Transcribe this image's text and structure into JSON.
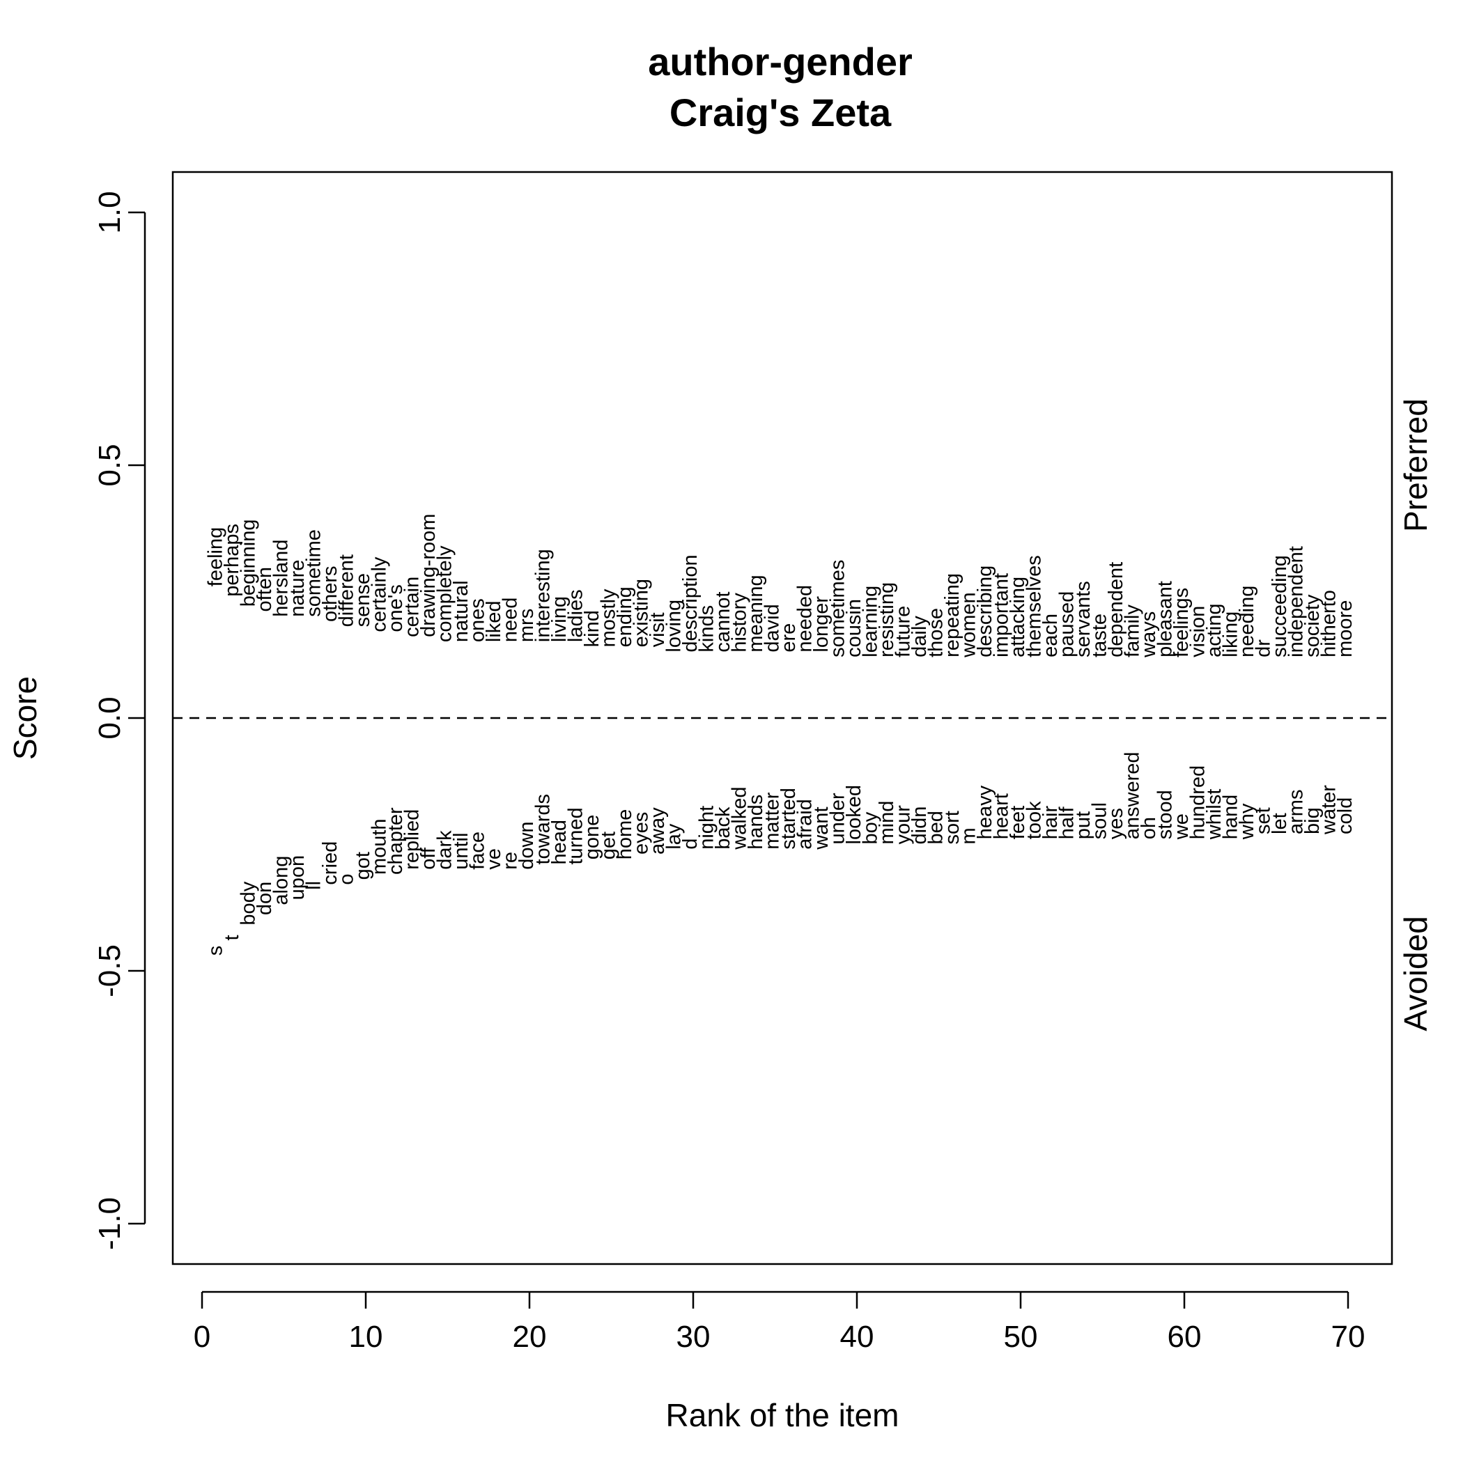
{
  "chart_data": {
    "type": "scatter",
    "title": "author-gender",
    "subtitle": "Craig's Zeta",
    "xlabel": "Rank of the item",
    "ylabel": "Score",
    "xlim": [
      0,
      70
    ],
    "ylim": [
      -1.0,
      1.0
    ],
    "x_ticks": [
      0,
      10,
      20,
      30,
      40,
      50,
      60,
      70
    ],
    "x_tick_labels": [
      "0",
      "10",
      "20",
      "30",
      "40",
      "50",
      "60",
      "70"
    ],
    "y_ticks": [
      -1.0,
      -0.5,
      0.0,
      0.5,
      1.0
    ],
    "y_tick_labels": [
      "-1.0",
      "-0.5",
      "0.0",
      "0.5",
      "1.0"
    ],
    "reference_line": {
      "y": 0,
      "style": "dashed"
    },
    "side_labels": {
      "top": "Preferred",
      "bottom": "Avoided"
    },
    "grid": false,
    "series": [
      {
        "name": "Preferred",
        "words": [
          "feeling",
          "perhaps",
          "beginning",
          "often",
          "hersland",
          "nature",
          "sometime",
          "others",
          "different",
          "sense",
          "certainly",
          "one's",
          "certain",
          "drawing-room",
          "completely",
          "natural",
          "ones",
          "liked",
          "need",
          "mrs",
          "interesting",
          "living",
          "ladies",
          "kind",
          "mostly",
          "ending",
          "existing",
          "visit",
          "loving",
          "description",
          "kinds",
          "cannot",
          "history",
          "meaning",
          "david",
          "ere",
          "needed",
          "longer",
          "sometimes",
          "cousin",
          "learning",
          "resisting",
          "future",
          "daily",
          "those",
          "repeating",
          "women",
          "describing",
          "important",
          "attacking",
          "themselves",
          "each",
          "paused",
          "servants",
          "taste",
          "dependent",
          "family",
          "ways",
          "pleasant",
          "feelings",
          "vision",
          "acting",
          "liking",
          "needing",
          "dr",
          "succeeding",
          "independent",
          "society",
          "hitherto",
          "moore"
        ],
        "values": [
          0.26,
          0.24,
          0.22,
          0.21,
          0.2,
          0.2,
          0.2,
          0.19,
          0.18,
          0.18,
          0.17,
          0.17,
          0.16,
          0.16,
          0.15,
          0.15,
          0.15,
          0.15,
          0.15,
          0.15,
          0.15,
          0.15,
          0.15,
          0.14,
          0.14,
          0.14,
          0.14,
          0.14,
          0.13,
          0.13,
          0.13,
          0.13,
          0.13,
          0.13,
          0.13,
          0.13,
          0.13,
          0.13,
          0.12,
          0.12,
          0.12,
          0.12,
          0.12,
          0.12,
          0.12,
          0.12,
          0.12,
          0.12,
          0.12,
          0.12,
          0.12,
          0.12,
          0.12,
          0.12,
          0.12,
          0.12,
          0.12,
          0.12,
          0.12,
          0.12,
          0.12,
          0.12,
          0.12,
          0.12,
          0.12,
          0.12,
          0.12,
          0.12,
          0.12,
          0.12
        ]
      },
      {
        "name": "Avoided",
        "words": [
          "s",
          "t",
          "body",
          "don",
          "along",
          "upon",
          "ll",
          "cried",
          "o",
          "got",
          "mouth",
          "chapter",
          "replied",
          "off",
          "dark",
          "until",
          "face",
          "ve",
          "re",
          "down",
          "towards",
          "head",
          "turned",
          "gone",
          "get",
          "home",
          "eyes",
          "away",
          "lay",
          "d",
          "night",
          "back",
          "walked",
          "hands",
          "matter",
          "started",
          "afraid",
          "want",
          "under",
          "looked",
          "boy",
          "mind",
          "your",
          "didn",
          "bed",
          "sort",
          "m",
          "heavy",
          "heart",
          "feet",
          "took",
          "hair",
          "half",
          "put",
          "soul",
          "yes",
          "answered",
          "oh",
          "stood",
          "we",
          "hundred",
          "whilst",
          "hand",
          "why",
          "set",
          "let",
          "arms",
          "big",
          "water",
          "cold"
        ],
        "values": [
          -0.47,
          -0.44,
          -0.41,
          -0.39,
          -0.37,
          -0.36,
          -0.34,
          -0.33,
          -0.33,
          -0.32,
          -0.31,
          -0.31,
          -0.3,
          -0.3,
          -0.3,
          -0.3,
          -0.3,
          -0.3,
          -0.3,
          -0.3,
          -0.29,
          -0.29,
          -0.29,
          -0.28,
          -0.28,
          -0.28,
          -0.27,
          -0.27,
          -0.26,
          -0.26,
          -0.26,
          -0.26,
          -0.26,
          -0.26,
          -0.26,
          -0.26,
          -0.26,
          -0.26,
          -0.25,
          -0.25,
          -0.25,
          -0.25,
          -0.25,
          -0.25,
          -0.25,
          -0.25,
          -0.25,
          -0.24,
          -0.24,
          -0.24,
          -0.24,
          -0.24,
          -0.24,
          -0.24,
          -0.24,
          -0.24,
          -0.24,
          -0.24,
          -0.24,
          -0.24,
          -0.24,
          -0.24,
          -0.24,
          -0.24,
          -0.23,
          -0.23,
          -0.23,
          -0.23,
          -0.23,
          -0.23
        ]
      }
    ]
  }
}
